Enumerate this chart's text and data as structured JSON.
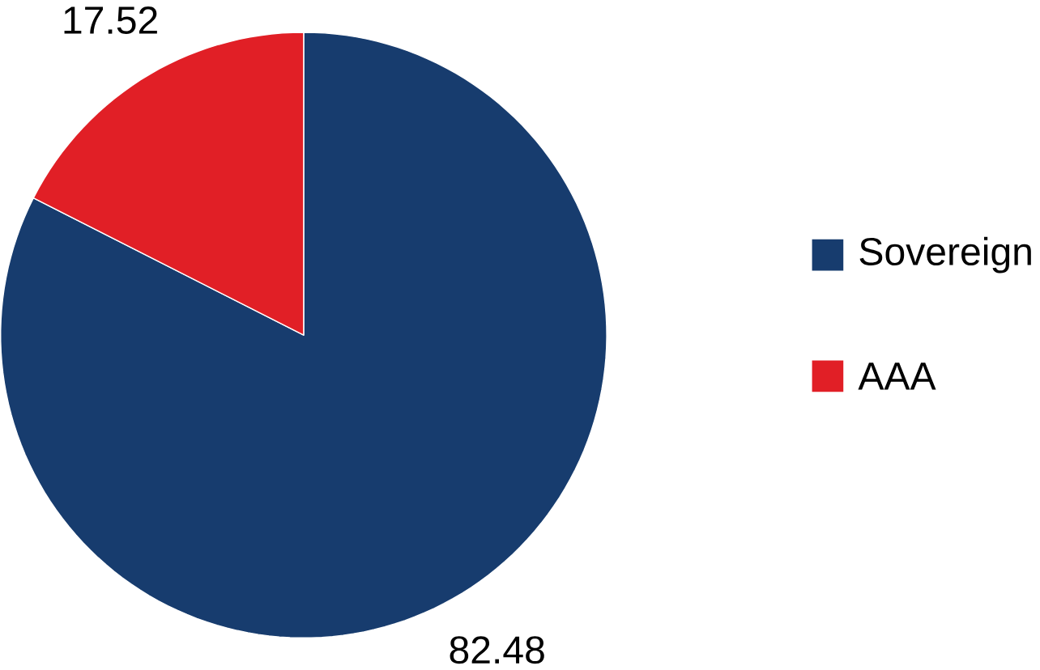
{
  "chart_data": {
    "type": "pie",
    "categories": [
      "Sovereign",
      "AAA"
    ],
    "values": [
      82.48,
      17.52
    ],
    "colors": [
      "#173c6e",
      "#e11f26"
    ],
    "data_labels": true,
    "legend": "right"
  }
}
